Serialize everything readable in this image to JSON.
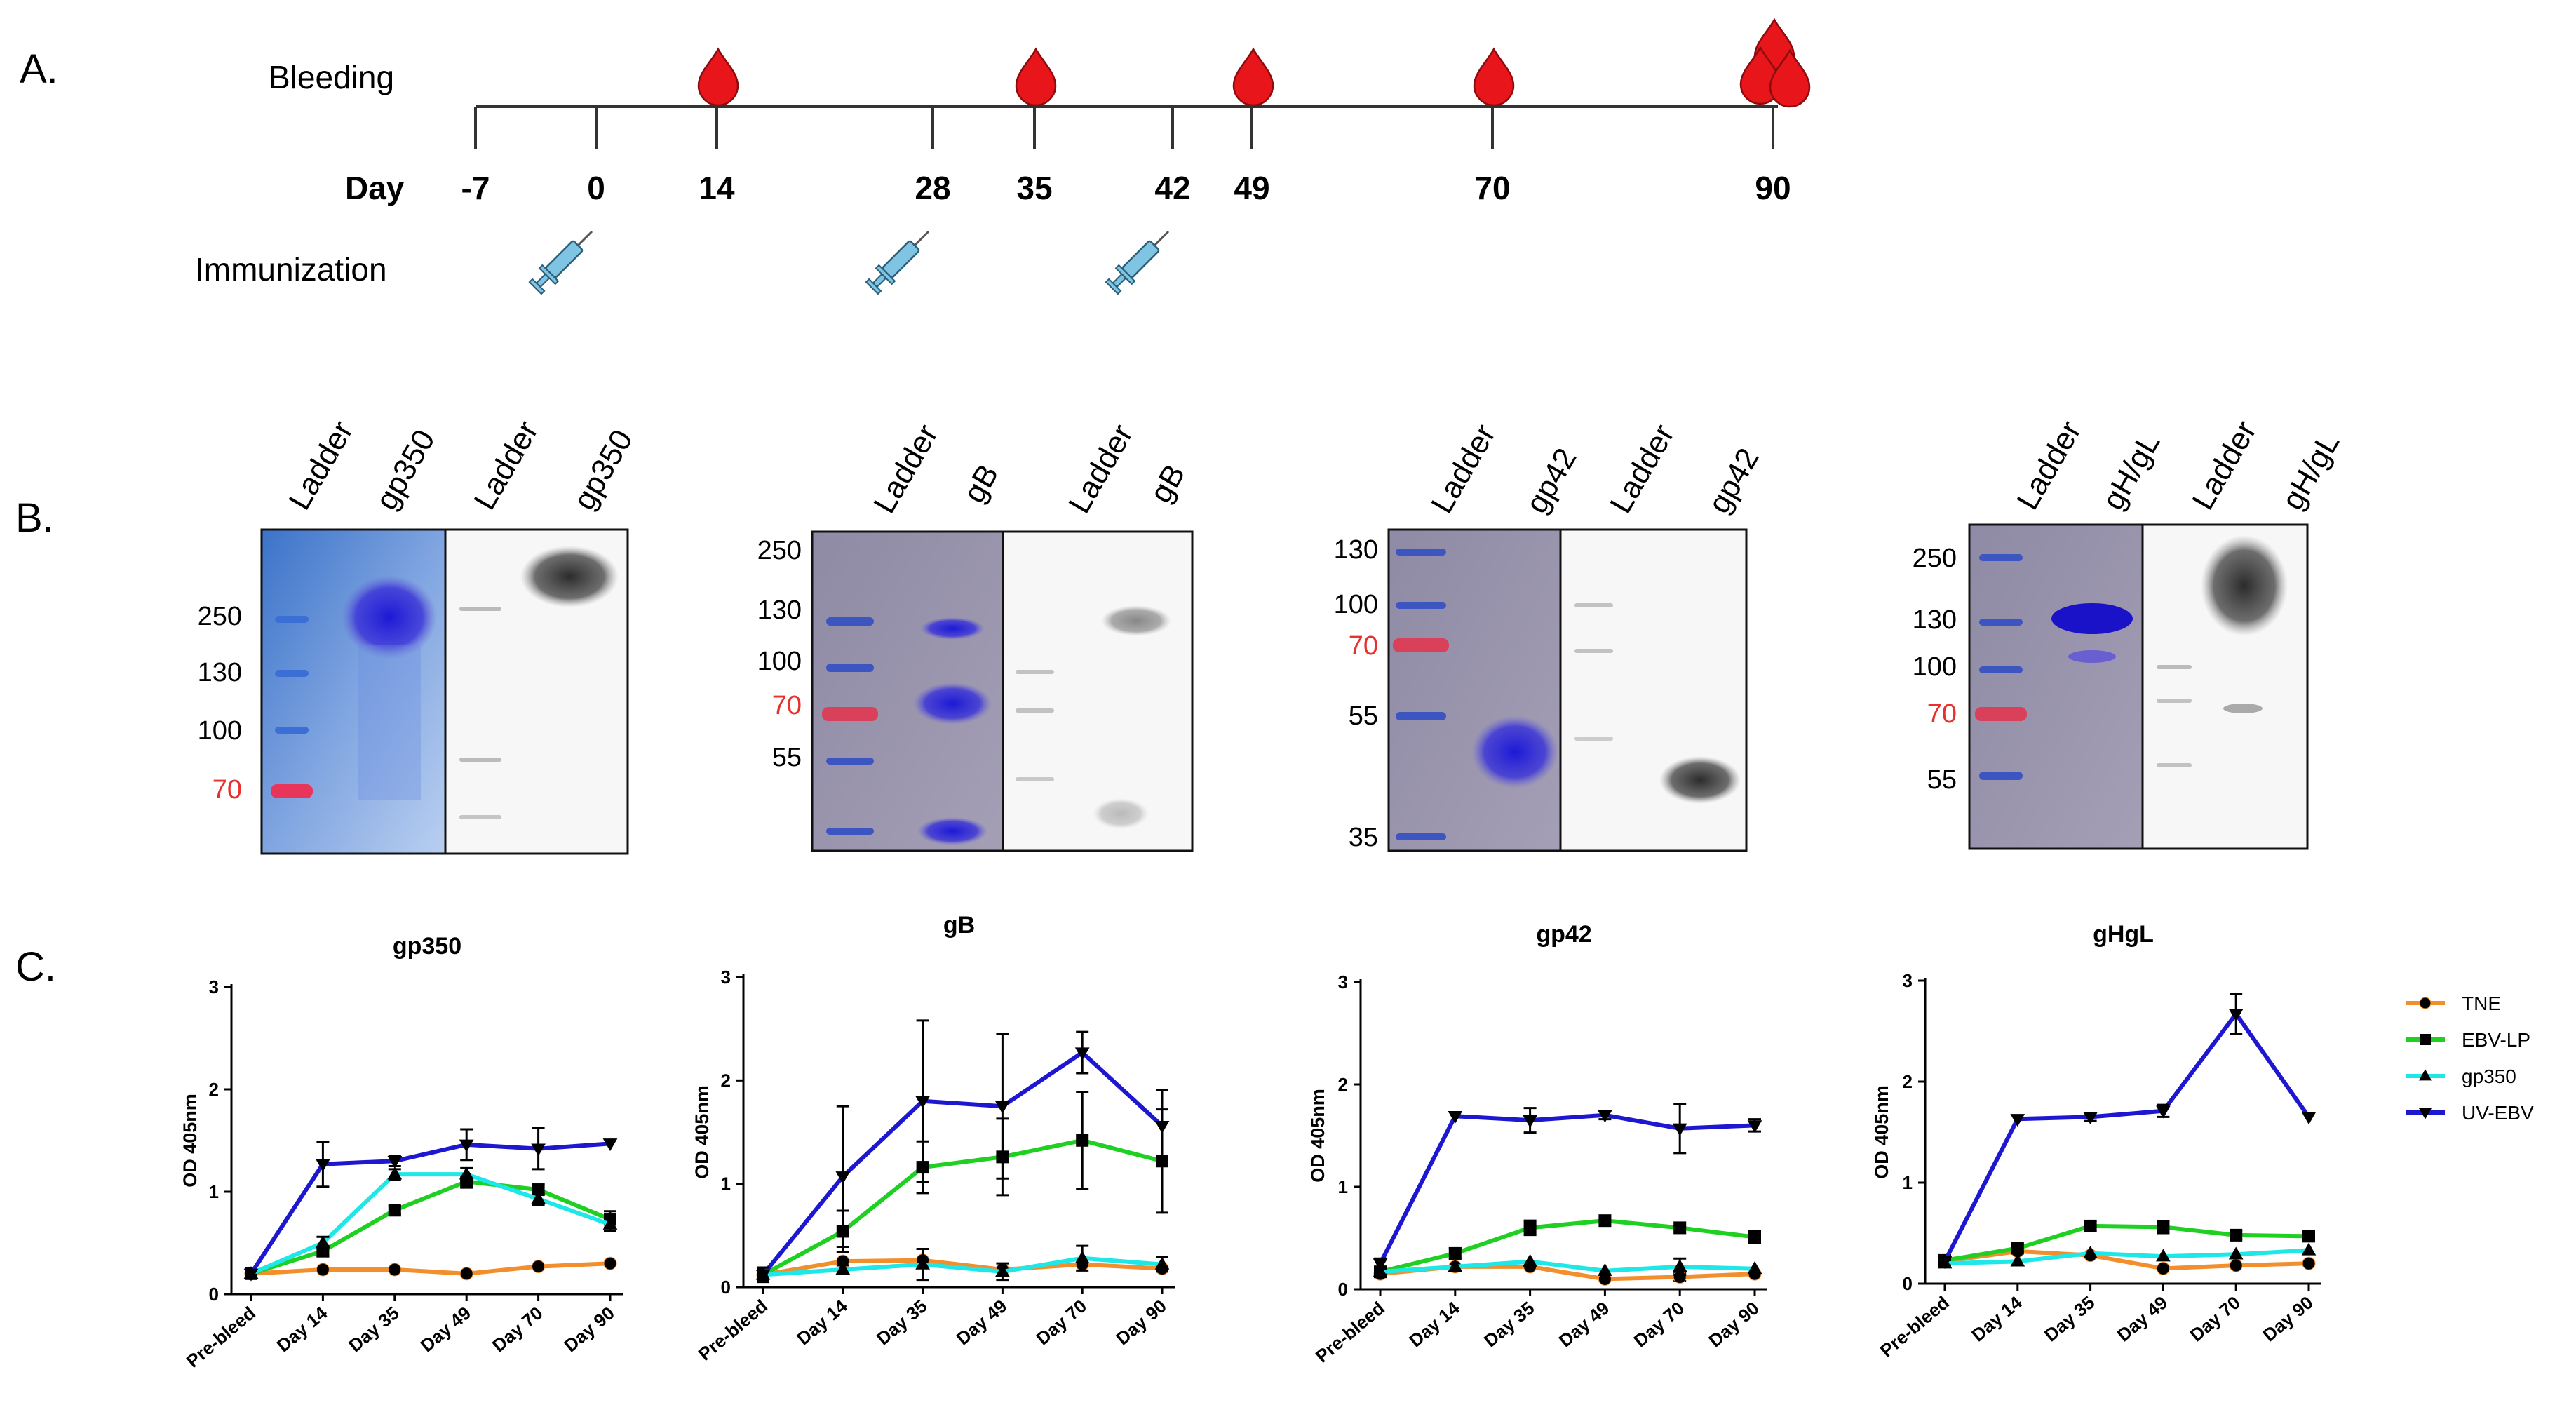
{
  "panels": {
    "a": "A.",
    "b": "B.",
    "c": "C."
  },
  "timeline": {
    "bleeding_label": "Bleeding",
    "day_label": "Day",
    "immunization_label": "Immunization",
    "days": [
      "-7",
      "0",
      "14",
      "28",
      "35",
      "42",
      "49",
      "70",
      "90"
    ],
    "bleeding_days": [
      "14",
      "35",
      "49",
      "70",
      "90"
    ],
    "immunization_days": [
      "0",
      "28",
      "42"
    ],
    "drop_color": "#e8161b",
    "syringe_color": "#7fc4e3"
  },
  "blots": [
    {
      "name": "gp350",
      "lanes": [
        "Ladder",
        "gp350",
        "Ladder",
        "gp350"
      ],
      "markers": [
        "250",
        "130",
        "100",
        "70"
      ],
      "red_marker": "70"
    },
    {
      "name": "gB",
      "lanes": [
        "Ladder",
        "gB",
        "Ladder",
        "gB"
      ],
      "markers": [
        "250",
        "130",
        "100",
        "70",
        "55"
      ],
      "red_marker": "70"
    },
    {
      "name": "gp42",
      "lanes": [
        "Ladder",
        "gp42",
        "Ladder",
        "gp42"
      ],
      "markers": [
        "130",
        "100",
        "70",
        "55",
        "35"
      ],
      "red_marker": "70"
    },
    {
      "name": "gH/gL",
      "lanes": [
        "Ladder",
        "gH/gL",
        "Ladder",
        "gH/gL"
      ],
      "markers": [
        "250",
        "130",
        "100",
        "70",
        "55"
      ],
      "red_marker": "70"
    }
  ],
  "chart_data": [
    {
      "type": "line",
      "title": "gp350",
      "ylabel": "OD 405nm",
      "xlabel": "",
      "ylim": [
        0,
        3
      ],
      "yticks": [
        "0",
        "1",
        "2",
        "3"
      ],
      "categories": [
        "Pre-bleed",
        "Day 14",
        "Day 35",
        "Day 49",
        "Day 70",
        "Day 90"
      ],
      "series": [
        {
          "name": "TNE",
          "values": [
            0.2,
            0.24,
            0.24,
            0.2,
            0.27,
            0.3
          ],
          "errors": [
            0.02,
            0.02,
            0.02,
            0.02,
            0.03,
            0.02
          ]
        },
        {
          "name": "EBV-LP",
          "values": [
            0.2,
            0.42,
            0.82,
            1.1,
            1.02,
            0.73
          ],
          "errors": [
            0.04,
            0.05,
            0.04,
            0.06,
            0.05,
            0.08
          ]
        },
        {
          "name": "gp350",
          "values": [
            0.2,
            0.5,
            1.17,
            1.17,
            0.93,
            0.68
          ],
          "errors": [
            0.04,
            0.06,
            0.05,
            0.06,
            0.06,
            0.06
          ]
        },
        {
          "name": "UV-EBV",
          "values": [
            0.2,
            1.27,
            1.3,
            1.46,
            1.42,
            1.47
          ],
          "errors": [
            0.03,
            0.22,
            0.05,
            0.15,
            0.2,
            0.03
          ]
        }
      ]
    },
    {
      "type": "line",
      "title": "gB",
      "ylabel": "OD 405nm",
      "xlabel": "",
      "ylim": [
        0,
        3
      ],
      "yticks": [
        "0",
        "1",
        "2",
        "3"
      ],
      "categories": [
        "Pre-bleed",
        "Day 14",
        "Day 35",
        "Day 49",
        "Day 70",
        "Day 90"
      ],
      "series": [
        {
          "name": "TNE",
          "values": [
            0.12,
            0.25,
            0.26,
            0.17,
            0.22,
            0.18
          ],
          "errors": [
            0.02,
            0.03,
            0.03,
            0.03,
            0.03,
            0.03
          ]
        },
        {
          "name": "EBV-LP",
          "values": [
            0.12,
            0.54,
            1.16,
            1.26,
            1.42,
            1.22
          ],
          "errors": [
            0.05,
            0.2,
            0.25,
            0.37,
            0.47,
            0.5
          ]
        },
        {
          "name": "gp350",
          "values": [
            0.12,
            0.17,
            0.22,
            0.15,
            0.28,
            0.22
          ],
          "errors": [
            0.03,
            0.04,
            0.15,
            0.08,
            0.12,
            0.07
          ]
        },
        {
          "name": "UV-EBV",
          "values": [
            0.12,
            1.07,
            1.8,
            1.75,
            2.27,
            1.56
          ],
          "errors": [
            0.07,
            0.68,
            0.78,
            0.7,
            0.2,
            0.35
          ]
        }
      ]
    },
    {
      "type": "line",
      "title": "gp42",
      "ylabel": "OD 405nm",
      "xlabel": "",
      "ylim": [
        0,
        3
      ],
      "yticks": [
        "0",
        "1",
        "2",
        "3"
      ],
      "categories": [
        "Pre-bleed",
        "Day 14",
        "Day 35",
        "Day 49",
        "Day 70",
        "Day 90"
      ],
      "series": [
        {
          "name": "TNE",
          "values": [
            0.15,
            0.22,
            0.22,
            0.1,
            0.12,
            0.15
          ],
          "errors": [
            0.02,
            0.03,
            0.03,
            0.03,
            0.04,
            0.03
          ]
        },
        {
          "name": "EBV-LP",
          "values": [
            0.17,
            0.35,
            0.6,
            0.67,
            0.6,
            0.51
          ],
          "errors": [
            0.03,
            0.05,
            0.07,
            0.03,
            0.03,
            0.06
          ]
        },
        {
          "name": "gp350",
          "values": [
            0.17,
            0.22,
            0.27,
            0.18,
            0.22,
            0.2
          ],
          "errors": [
            0.03,
            0.03,
            0.03,
            0.03,
            0.08,
            0.03
          ]
        },
        {
          "name": "UV-EBV",
          "values": [
            0.25,
            1.69,
            1.65,
            1.7,
            1.57,
            1.6
          ],
          "errors": [
            0.05,
            0.03,
            0.12,
            0.04,
            0.24,
            0.06
          ]
        }
      ]
    },
    {
      "type": "line",
      "title": "gHgL",
      "ylabel": "OD 405nm",
      "xlabel": "",
      "ylim": [
        0,
        3
      ],
      "yticks": [
        "0",
        "1",
        "2",
        "3"
      ],
      "categories": [
        "Pre-bleed",
        "Day 14",
        "Day 35",
        "Day 49",
        "Day 70",
        "Day 90"
      ],
      "series": [
        {
          "name": "TNE",
          "values": [
            0.22,
            0.32,
            0.28,
            0.15,
            0.18,
            0.2
          ],
          "errors": [
            0.03,
            0.03,
            0.03,
            0.03,
            0.03,
            0.03
          ]
        },
        {
          "name": "EBV-LP",
          "values": [
            0.23,
            0.35,
            0.57,
            0.56,
            0.48,
            0.47
          ],
          "errors": [
            0.03,
            0.04,
            0.05,
            0.06,
            0.04,
            0.05
          ]
        },
        {
          "name": "gp350",
          "values": [
            0.2,
            0.22,
            0.3,
            0.27,
            0.29,
            0.33
          ],
          "errors": [
            0.03,
            0.03,
            0.03,
            0.03,
            0.03,
            0.03
          ]
        },
        {
          "name": "UV-EBV",
          "values": [
            0.22,
            1.63,
            1.65,
            1.71,
            2.67,
            1.65
          ],
          "errors": [
            0.04,
            0.03,
            0.04,
            0.06,
            0.2,
            0.03
          ]
        }
      ]
    }
  ],
  "legend": {
    "entries": [
      {
        "name": "TNE",
        "marker": "circle",
        "color": "#f28e2b"
      },
      {
        "name": "EBV-LP",
        "marker": "square",
        "color": "#1fd023"
      },
      {
        "name": "gp350",
        "marker": "triangle-up",
        "color": "#1ee7e8"
      },
      {
        "name": "UV-EBV",
        "marker": "triangle-down",
        "color": "#1e17d0"
      }
    ]
  }
}
